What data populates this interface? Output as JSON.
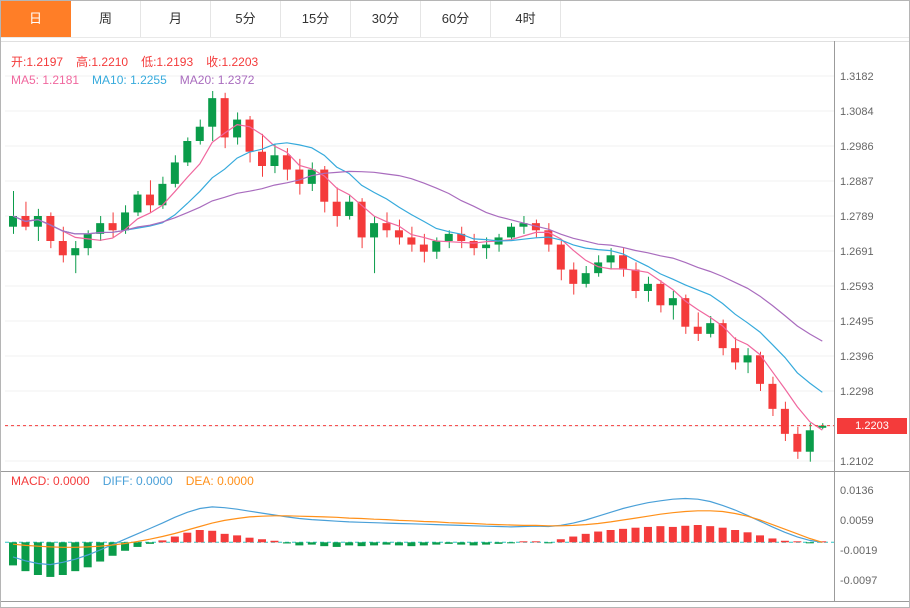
{
  "tabs": {
    "items": [
      {
        "name": "day",
        "label": "日",
        "active": true
      },
      {
        "name": "week",
        "label": "周",
        "active": false
      },
      {
        "name": "month",
        "label": "月",
        "active": false
      },
      {
        "name": "5min",
        "label": "5分",
        "active": false
      },
      {
        "name": "15min",
        "label": "15分",
        "active": false
      },
      {
        "name": "30min",
        "label": "30分",
        "active": false
      },
      {
        "name": "60min",
        "label": "60分",
        "active": false
      },
      {
        "name": "4hour",
        "label": "4时",
        "active": false
      }
    ]
  },
  "colors": {
    "up": "#0a9c4a",
    "down": "#f43b3b",
    "ma5": "#f0679e",
    "ma10": "#36aadc",
    "ma20": "#a96cbe",
    "diff": "#4aa0d8",
    "dea": "#ff9019",
    "tab_active": "#ff7e27",
    "price_line": "#f43b3b",
    "zero_line": "#2fc6c6",
    "axis_text": "#666",
    "frame": "#9b9b9b"
  },
  "legend_ohlc": {
    "color": "#f43b3b",
    "items": [
      {
        "name": "open",
        "label": "开",
        "value": "1.2197"
      },
      {
        "name": "high",
        "label": "高",
        "value": "1.2210"
      },
      {
        "name": "low",
        "label": "低",
        "value": "1.2193"
      },
      {
        "name": "close",
        "label": "收",
        "value": "1.2203"
      }
    ]
  },
  "legend_ma": {
    "items": [
      {
        "name": "ma5",
        "label": "MA5",
        "value": "1.2181",
        "color": "#f0679e"
      },
      {
        "name": "ma10",
        "label": "MA10",
        "value": "1.2255",
        "color": "#36aadc"
      },
      {
        "name": "ma20",
        "label": "MA20",
        "value": "1.2372",
        "color": "#a96cbe"
      }
    ]
  },
  "legend_macd": {
    "items": [
      {
        "name": "macd",
        "label": "MACD",
        "value": "0.0000",
        "color": "#f43b3b"
      },
      {
        "name": "diff",
        "label": "DIFF",
        "value": "0.0000",
        "color": "#4aa0d8"
      },
      {
        "name": "dea",
        "label": "DEA",
        "value": "0.0000",
        "color": "#ff9019"
      }
    ]
  },
  "price_axis": {
    "labels": [
      "1.3182",
      "1.3084",
      "1.2986",
      "1.2887",
      "1.2789",
      "1.2691",
      "1.2593",
      "1.2495",
      "1.2396",
      "1.2298",
      "",
      "1.2102"
    ],
    "last_price": "1.2203"
  },
  "macd_axis": {
    "labels": [
      "0.0136",
      "0.0059",
      "-0.0019",
      "-0.0097"
    ]
  },
  "chart_data": [
    {
      "type": "candlestick",
      "last_price": 1.2203,
      "up_color": "#0a9c4a",
      "down_color": "#f43b3b",
      "y_tick_step": 0.0098,
      "y_tick_labels": [
        "1.3182",
        "1.3084",
        "1.2986",
        "1.2887",
        "1.2789",
        "1.2691",
        "1.2593",
        "1.2495",
        "1.2396",
        "1.2298",
        "1.2203",
        "1.2102"
      ],
      "ma_periods": [
        5,
        10,
        20
      ],
      "ma_last_values": {
        "MA5": 1.2181,
        "MA10": 1.2255,
        "MA20": 1.2372
      },
      "ohlc": [
        [
          1.276,
          1.286,
          1.274,
          1.279
        ],
        [
          1.279,
          1.283,
          1.275,
          1.276
        ],
        [
          1.276,
          1.281,
          1.272,
          1.279
        ],
        [
          1.279,
          1.28,
          1.27,
          1.272
        ],
        [
          1.272,
          1.276,
          1.266,
          1.268
        ],
        [
          1.268,
          1.272,
          1.263,
          1.27
        ],
        [
          1.27,
          1.275,
          1.268,
          1.274
        ],
        [
          1.274,
          1.279,
          1.272,
          1.277
        ],
        [
          1.277,
          1.28,
          1.273,
          1.275
        ],
        [
          1.275,
          1.282,
          1.274,
          1.28
        ],
        [
          1.28,
          1.286,
          1.279,
          1.285
        ],
        [
          1.285,
          1.289,
          1.28,
          1.282
        ],
        [
          1.282,
          1.29,
          1.281,
          1.288
        ],
        [
          1.288,
          1.296,
          1.287,
          1.294
        ],
        [
          1.294,
          1.301,
          1.293,
          1.3
        ],
        [
          1.3,
          1.306,
          1.299,
          1.304
        ],
        [
          1.304,
          1.314,
          1.3,
          1.312
        ],
        [
          1.312,
          1.3135,
          1.298,
          1.301
        ],
        [
          1.301,
          1.308,
          1.299,
          1.306
        ],
        [
          1.306,
          1.307,
          1.294,
          1.297
        ],
        [
          1.297,
          1.302,
          1.29,
          1.293
        ],
        [
          1.293,
          1.299,
          1.291,
          1.296
        ],
        [
          1.296,
          1.298,
          1.289,
          1.292
        ],
        [
          1.292,
          1.295,
          1.285,
          1.288
        ],
        [
          1.288,
          1.294,
          1.286,
          1.292
        ],
        [
          1.292,
          1.293,
          1.28,
          1.283
        ],
        [
          1.283,
          1.287,
          1.276,
          1.279
        ],
        [
          1.279,
          1.285,
          1.278,
          1.283
        ],
        [
          1.283,
          1.284,
          1.27,
          1.273
        ],
        [
          1.273,
          1.279,
          1.263,
          1.277
        ],
        [
          1.277,
          1.28,
          1.273,
          1.275
        ],
        [
          1.275,
          1.278,
          1.271,
          1.273
        ],
        [
          1.273,
          1.276,
          1.269,
          1.271
        ],
        [
          1.271,
          1.274,
          1.266,
          1.269
        ],
        [
          1.269,
          1.273,
          1.267,
          1.272
        ],
        [
          1.272,
          1.275,
          1.27,
          1.274
        ],
        [
          1.274,
          1.276,
          1.27,
          1.272
        ],
        [
          1.272,
          1.274,
          1.268,
          1.27
        ],
        [
          1.27,
          1.273,
          1.267,
          1.271
        ],
        [
          1.271,
          1.274,
          1.269,
          1.273
        ],
        [
          1.273,
          1.277,
          1.272,
          1.276
        ],
        [
          1.276,
          1.279,
          1.274,
          1.277
        ],
        [
          1.277,
          1.278,
          1.273,
          1.275
        ],
        [
          1.275,
          1.277,
          1.269,
          1.271
        ],
        [
          1.271,
          1.272,
          1.261,
          1.264
        ],
        [
          1.264,
          1.266,
          1.257,
          1.26
        ],
        [
          1.26,
          1.265,
          1.259,
          1.263
        ],
        [
          1.263,
          1.268,
          1.262,
          1.266
        ],
        [
          1.266,
          1.27,
          1.264,
          1.268
        ],
        [
          1.268,
          1.27,
          1.262,
          1.264
        ],
        [
          1.264,
          1.266,
          1.256,
          1.258
        ],
        [
          1.258,
          1.262,
          1.255,
          1.26
        ],
        [
          1.26,
          1.261,
          1.252,
          1.254
        ],
        [
          1.254,
          1.258,
          1.25,
          1.256
        ],
        [
          1.256,
          1.257,
          1.246,
          1.248
        ],
        [
          1.248,
          1.252,
          1.244,
          1.246
        ],
        [
          1.246,
          1.251,
          1.245,
          1.249
        ],
        [
          1.249,
          1.25,
          1.24,
          1.242
        ],
        [
          1.242,
          1.245,
          1.236,
          1.238
        ],
        [
          1.238,
          1.242,
          1.235,
          1.24
        ],
        [
          1.24,
          1.241,
          1.23,
          1.232
        ],
        [
          1.232,
          1.234,
          1.223,
          1.225
        ],
        [
          1.225,
          1.227,
          1.216,
          1.218
        ],
        [
          1.218,
          1.22,
          1.211,
          1.213
        ],
        [
          1.213,
          1.221,
          1.2102,
          1.219
        ],
        [
          1.2197,
          1.221,
          1.2193,
          1.2203
        ]
      ]
    },
    {
      "type": "bar",
      "name": "MACD",
      "y_tick_labels": [
        "0.0136",
        "0.0059",
        "-0.0019",
        "-0.0097"
      ],
      "pos_color": "#f43b3b",
      "neg_color": "#0a9c4a",
      "hist": [
        -0.006,
        -0.0075,
        -0.0085,
        -0.009,
        -0.0085,
        -0.0075,
        -0.0065,
        -0.005,
        -0.0035,
        -0.0022,
        -0.0012,
        -0.0004,
        0.0005,
        0.0015,
        0.0025,
        0.0032,
        0.003,
        0.0022,
        0.0018,
        0.0012,
        0.0008,
        0.0004,
        -0.0003,
        -0.0008,
        -0.0006,
        -0.001,
        -0.0012,
        -0.0008,
        -0.001,
        -0.0008,
        -0.0006,
        -0.0008,
        -0.001,
        -0.0008,
        -0.0006,
        -0.0004,
        -0.0006,
        -0.0008,
        -0.0006,
        -0.0004,
        -0.0002,
        0.0002,
        0.0001,
        -0.0002,
        0.0008,
        0.0015,
        0.0022,
        0.0028,
        0.0032,
        0.0035,
        0.0038,
        0.004,
        0.0042,
        0.004,
        0.0043,
        0.0045,
        0.0042,
        0.0038,
        0.0032,
        0.0026,
        0.0018,
        0.001,
        0.0004,
        0.0001,
        -0.0001,
        0.0
      ],
      "diff": [
        -0.0038,
        -0.0048,
        -0.0055,
        -0.0058,
        -0.0052,
        -0.0044,
        -0.0033,
        -0.002,
        -0.0006,
        0.0008,
        0.0022,
        0.0036,
        0.005,
        0.0065,
        0.0078,
        0.0088,
        0.0092,
        0.009,
        0.0086,
        0.0081,
        0.0076,
        0.0071,
        0.0066,
        0.0062,
        0.0059,
        0.0057,
        0.0055,
        0.0053,
        0.0052,
        0.0051,
        0.005,
        0.0049,
        0.0048,
        0.0047,
        0.0046,
        0.0045,
        0.0044,
        0.0043,
        0.0042,
        0.0041,
        0.004,
        0.0041,
        0.0042,
        0.0041,
        0.0044,
        0.005,
        0.0058,
        0.0068,
        0.0078,
        0.0088,
        0.0096,
        0.0103,
        0.0108,
        0.0112,
        0.0114,
        0.0112,
        0.0106,
        0.0096,
        0.0084,
        0.007,
        0.0055,
        0.004,
        0.0026,
        0.0014,
        0.0005,
        0.0
      ],
      "dea": [
        -0.0005,
        -0.0008,
        -0.001,
        -0.0012,
        -0.0013,
        -0.0013,
        -0.0012,
        -0.001,
        -0.0007,
        -0.0003,
        0.0002,
        0.0008,
        0.0015,
        0.0023,
        0.0032,
        0.0041,
        0.005,
        0.0057,
        0.0062,
        0.0066,
        0.0068,
        0.0069,
        0.0069,
        0.0068,
        0.0067,
        0.0066,
        0.0065,
        0.0063,
        0.0062,
        0.006,
        0.0059,
        0.0057,
        0.0056,
        0.0054,
        0.0053,
        0.0051,
        0.005,
        0.0049,
        0.0047,
        0.0046,
        0.0045,
        0.0044,
        0.0044,
        0.0043,
        0.0043,
        0.0044,
        0.0046,
        0.0049,
        0.0053,
        0.0058,
        0.0063,
        0.0068,
        0.0073,
        0.0077,
        0.008,
        0.0082,
        0.0082,
        0.008,
        0.0075,
        0.0068,
        0.0058,
        0.0046,
        0.0034,
        0.0022,
        0.001,
        0.0
      ]
    }
  ]
}
